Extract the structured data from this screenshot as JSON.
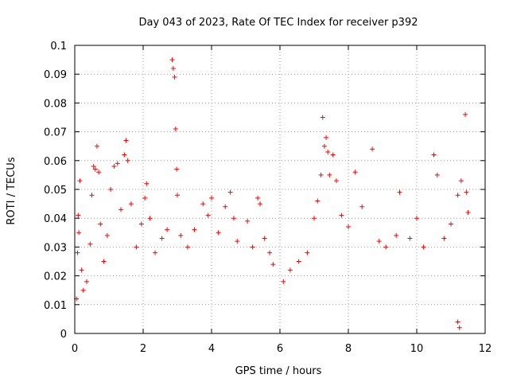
{
  "chart_data": {
    "type": "scatter",
    "title": "Day 043 of 2023, Rate Of TEC Index for receiver p392",
    "xlabel": "GPS time / hours",
    "ylabel": "ROTI / TECUs",
    "xlim": [
      0,
      12
    ],
    "ylim": [
      0,
      0.1
    ],
    "x_ticks": [
      "0",
      "2",
      "4",
      "6",
      "8",
      "10",
      "12"
    ],
    "y_ticks": [
      "0",
      "0.01",
      "0.02",
      "0.03",
      "0.04",
      "0.05",
      "0.06",
      "0.07",
      "0.08",
      "0.09",
      "0.1"
    ],
    "grid": true,
    "marker": "+",
    "point_color": "#ff0000",
    "series": [
      {
        "name": "",
        "points": [
          [
            0.05,
            0.012
          ],
          [
            0.08,
            0.028
          ],
          [
            0.1,
            0.041
          ],
          [
            0.12,
            0.035
          ],
          [
            0.15,
            0.053
          ],
          [
            0.2,
            0.022
          ],
          [
            0.25,
            0.015
          ],
          [
            0.35,
            0.018
          ],
          [
            0.45,
            0.031
          ],
          [
            0.5,
            0.048
          ],
          [
            0.55,
            0.058
          ],
          [
            0.6,
            0.057
          ],
          [
            0.65,
            0.065
          ],
          [
            0.7,
            0.056
          ],
          [
            0.75,
            0.038
          ],
          [
            0.85,
            0.025
          ],
          [
            0.95,
            0.034
          ],
          [
            1.05,
            0.05
          ],
          [
            1.15,
            0.058
          ],
          [
            1.25,
            0.059
          ],
          [
            1.35,
            0.043
          ],
          [
            1.45,
            0.062
          ],
          [
            1.5,
            0.067
          ],
          [
            1.55,
            0.06
          ],
          [
            1.65,
            0.045
          ],
          [
            1.8,
            0.03
          ],
          [
            1.95,
            0.038
          ],
          [
            2.05,
            0.047
          ],
          [
            2.1,
            0.052
          ],
          [
            2.2,
            0.04
          ],
          [
            2.35,
            0.028
          ],
          [
            2.55,
            0.033
          ],
          [
            2.7,
            0.036
          ],
          [
            2.85,
            0.095
          ],
          [
            2.88,
            0.092
          ],
          [
            2.92,
            0.089
          ],
          [
            2.95,
            0.071
          ],
          [
            2.98,
            0.057
          ],
          [
            3.0,
            0.048
          ],
          [
            3.1,
            0.034
          ],
          [
            3.3,
            0.03
          ],
          [
            3.5,
            0.036
          ],
          [
            3.75,
            0.045
          ],
          [
            3.9,
            0.041
          ],
          [
            4.0,
            0.047
          ],
          [
            4.2,
            0.035
          ],
          [
            4.4,
            0.044
          ],
          [
            4.55,
            0.049
          ],
          [
            4.65,
            0.04
          ],
          [
            4.75,
            0.032
          ],
          [
            5.05,
            0.039
          ],
          [
            5.2,
            0.03
          ],
          [
            5.35,
            0.047
          ],
          [
            5.42,
            0.045
          ],
          [
            5.55,
            0.033
          ],
          [
            5.7,
            0.028
          ],
          [
            5.8,
            0.024
          ],
          [
            6.1,
            0.018
          ],
          [
            6.3,
            0.022
          ],
          [
            6.55,
            0.025
          ],
          [
            6.8,
            0.028
          ],
          [
            7.0,
            0.04
          ],
          [
            7.1,
            0.046
          ],
          [
            7.2,
            0.055
          ],
          [
            7.25,
            0.075
          ],
          [
            7.3,
            0.065
          ],
          [
            7.35,
            0.068
          ],
          [
            7.4,
            0.063
          ],
          [
            7.45,
            0.055
          ],
          [
            7.55,
            0.062
          ],
          [
            7.65,
            0.053
          ],
          [
            7.8,
            0.041
          ],
          [
            8.0,
            0.037
          ],
          [
            8.2,
            0.056
          ],
          [
            8.4,
            0.044
          ],
          [
            8.7,
            0.064
          ],
          [
            8.9,
            0.032
          ],
          [
            9.1,
            0.03
          ],
          [
            9.4,
            0.034
          ],
          [
            9.5,
            0.049
          ],
          [
            9.8,
            0.033
          ],
          [
            10.0,
            0.04
          ],
          [
            10.2,
            0.03
          ],
          [
            10.5,
            0.062
          ],
          [
            10.6,
            0.055
          ],
          [
            10.8,
            0.033
          ],
          [
            11.0,
            0.038
          ],
          [
            11.2,
            0.048
          ],
          [
            11.3,
            0.053
          ],
          [
            11.42,
            0.076
          ],
          [
            11.45,
            0.049
          ],
          [
            11.5,
            0.042
          ],
          [
            11.2,
            0.004
          ],
          [
            11.25,
            0.002
          ]
        ]
      }
    ]
  }
}
